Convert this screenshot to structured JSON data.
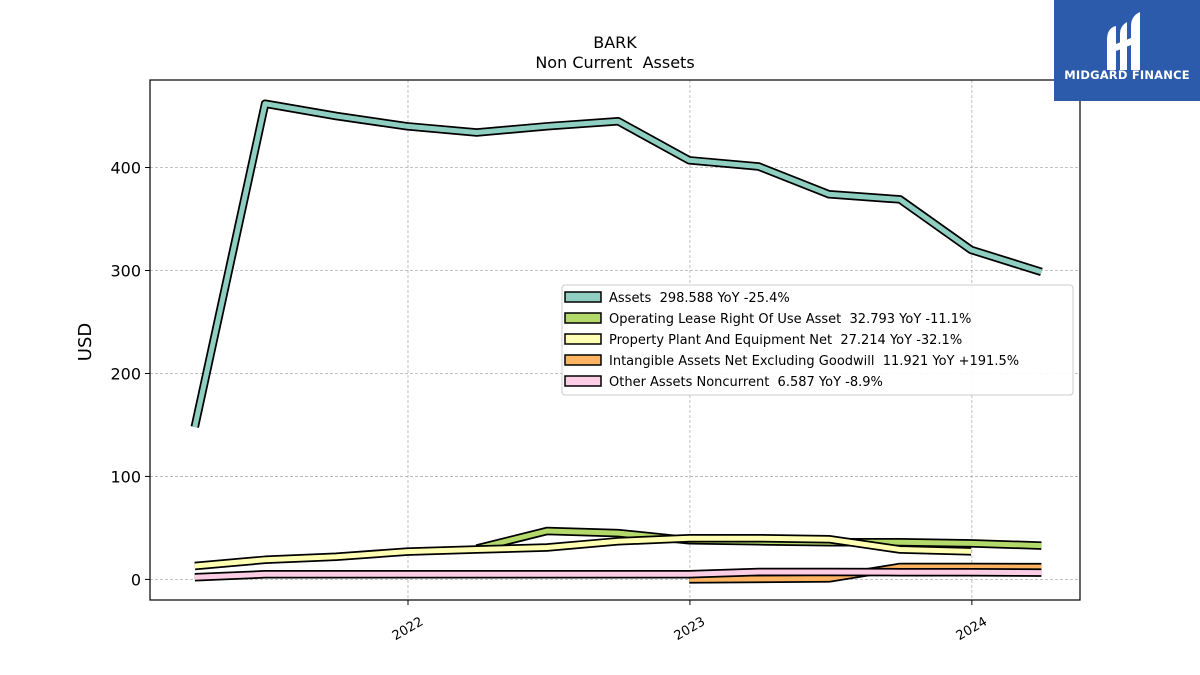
{
  "chart_data": {
    "type": "line",
    "title": "BARK",
    "subtitle": "Non Current  Assets",
    "ylabel": "USD",
    "xlabel": "",
    "ylim": [
      -20,
      485
    ],
    "yticks": [
      0,
      100,
      200,
      300,
      400
    ],
    "xlim": [
      "2021-02-01",
      "2024-05-20"
    ],
    "xticks": [
      {
        "date": "2022-01-01",
        "label": "2022"
      },
      {
        "date": "2023-01-01",
        "label": "2023"
      },
      {
        "date": "2024-01-01",
        "label": "2024"
      }
    ],
    "grid": true,
    "legend_position": "center-right",
    "series": [
      {
        "name": "Assets",
        "legend": "Assets  298.588 YoY -25.4%",
        "color": "#8ecfc2",
        "points": [
          [
            "2021-03-31",
            148
          ],
          [
            "2021-06-30",
            462
          ],
          [
            "2021-09-30",
            450
          ],
          [
            "2021-12-31",
            440
          ],
          [
            "2022-03-31",
            434
          ],
          [
            "2022-06-30",
            440
          ],
          [
            "2022-09-30",
            445
          ],
          [
            "2022-12-31",
            407
          ],
          [
            "2023-03-31",
            401
          ],
          [
            "2023-06-30",
            374
          ],
          [
            "2023-09-30",
            369
          ],
          [
            "2023-12-31",
            320
          ],
          [
            "2024-03-31",
            298.588
          ]
        ]
      },
      {
        "name": "Operating Lease Right Of Use Asset",
        "legend": "Operating Lease Right Of Use Asset  32.793 YoY -11.1%",
        "color": "#b3d96b",
        "points": [
          [
            "2022-03-31",
            30
          ],
          [
            "2022-06-30",
            47
          ],
          [
            "2022-09-30",
            45
          ],
          [
            "2022-12-31",
            38
          ],
          [
            "2023-03-31",
            37
          ],
          [
            "2023-06-30",
            36
          ],
          [
            "2023-09-30",
            36
          ],
          [
            "2023-12-31",
            35
          ],
          [
            "2024-03-31",
            32.793
          ]
        ]
      },
      {
        "name": "Property Plant And Equipment Net",
        "legend": "Property Plant And Equipment Net  27.214 YoY -32.1%",
        "color": "#ffffb3",
        "points": [
          [
            "2021-03-31",
            13
          ],
          [
            "2021-06-30",
            19
          ],
          [
            "2021-09-30",
            22
          ],
          [
            "2021-12-31",
            27
          ],
          [
            "2022-03-31",
            29
          ],
          [
            "2022-06-30",
            31
          ],
          [
            "2022-09-30",
            37
          ],
          [
            "2022-12-31",
            40
          ],
          [
            "2023-03-31",
            40
          ],
          [
            "2023-06-30",
            39
          ],
          [
            "2023-09-30",
            29
          ],
          [
            "2023-12-31",
            27.214
          ]
        ]
      },
      {
        "name": "Intangible Assets Net Excluding Goodwill",
        "legend": "Intangible Assets Net Excluding Goodwill  11.921 YoY +191.5%",
        "color": "#fdb462",
        "points": [
          [
            "2022-12-31",
            0
          ],
          [
            "2023-06-30",
            1
          ],
          [
            "2023-09-30",
            12
          ],
          [
            "2023-12-31",
            12
          ],
          [
            "2024-03-31",
            11.921
          ]
        ]
      },
      {
        "name": "Other Assets Noncurrent",
        "legend": "Other Assets Noncurrent  6.587 YoY -8.9%",
        "color": "#fccde5",
        "points": [
          [
            "2021-03-31",
            2
          ],
          [
            "2021-06-30",
            5
          ],
          [
            "2021-09-30",
            5
          ],
          [
            "2021-12-31",
            5
          ],
          [
            "2022-03-31",
            5
          ],
          [
            "2022-06-30",
            5
          ],
          [
            "2022-09-30",
            5
          ],
          [
            "2022-12-31",
            5
          ],
          [
            "2023-03-31",
            7.2
          ],
          [
            "2023-06-30",
            7.2
          ],
          [
            "2023-09-30",
            7
          ],
          [
            "2023-12-31",
            7
          ],
          [
            "2024-03-31",
            6.587
          ]
        ]
      }
    ]
  },
  "logo": {
    "text": "MIDGARD FINANCE",
    "background": "#2d5bab"
  }
}
